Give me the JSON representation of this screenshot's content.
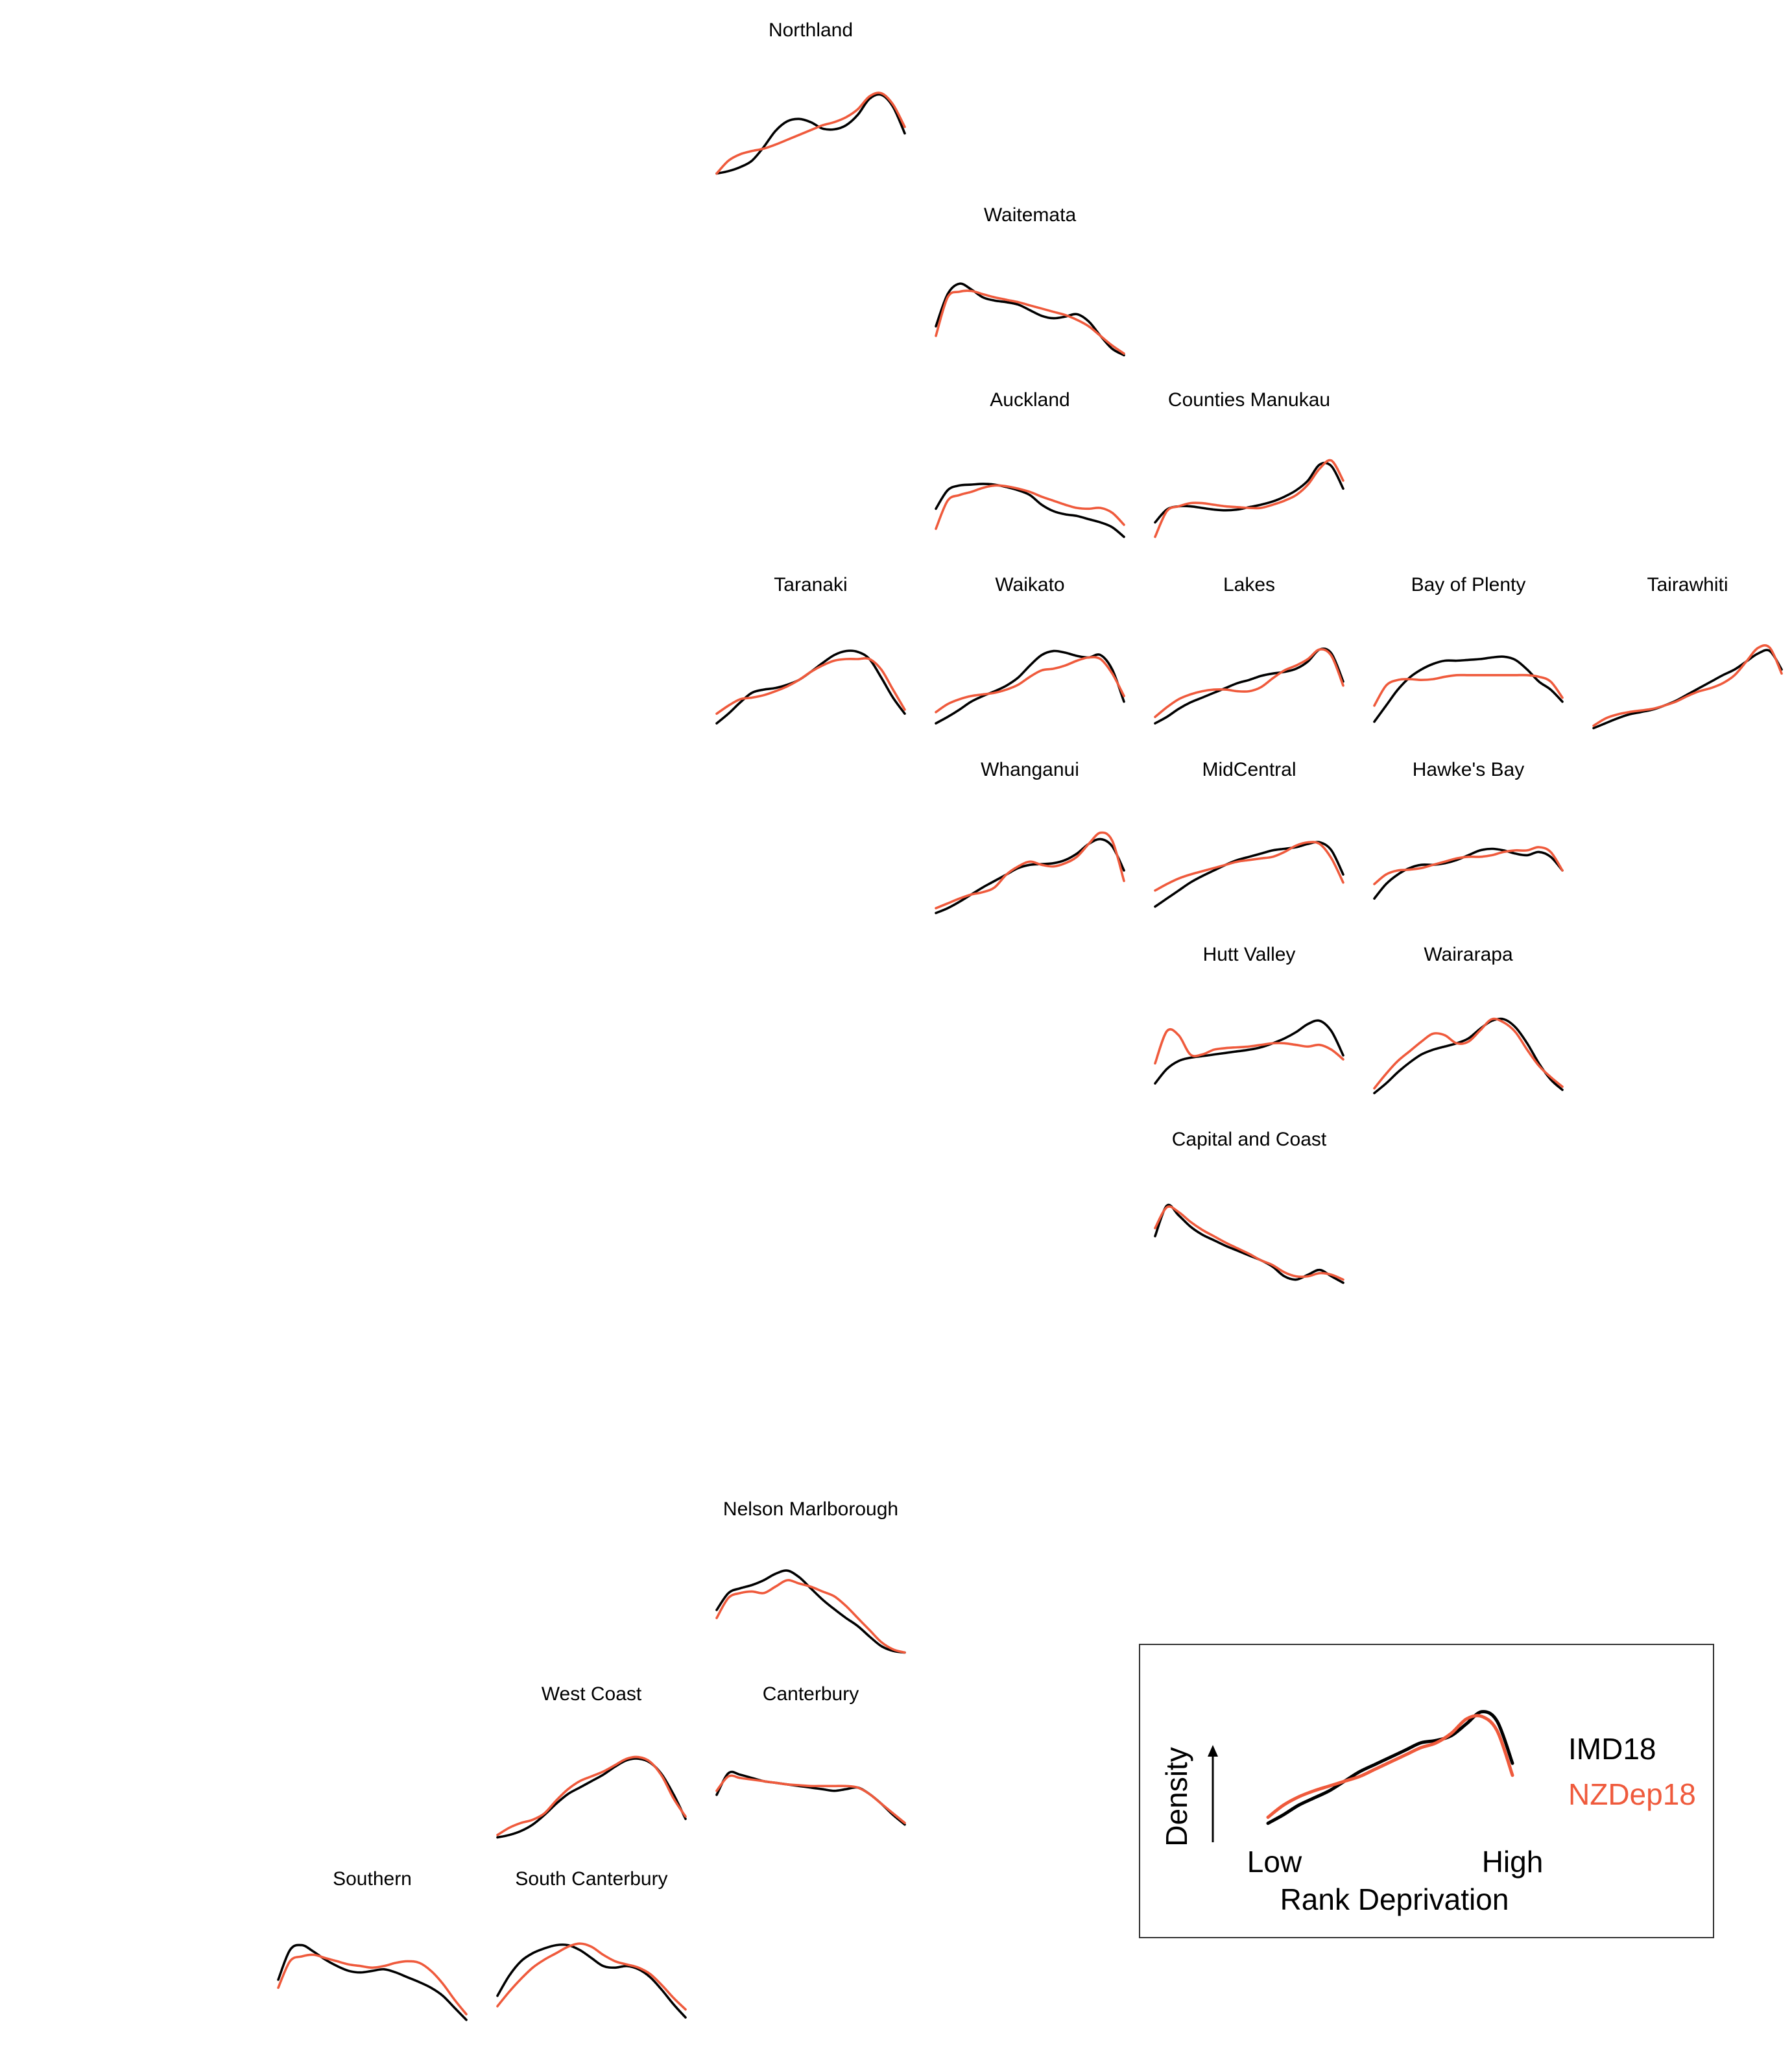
{
  "colors": {
    "imd": "#000000",
    "nzdep": "#ef5a3c",
    "background": "#ffffff",
    "legend_border": "#333333"
  },
  "chart_data": {
    "type": "line",
    "xlabel": "Rank Deprivation",
    "ylabel": "Density",
    "x_low_label": "Low",
    "x_high_label": "High",
    "legend": {
      "placement": "bottom-right",
      "example_series": "IMD18 and NZDep18 density curves"
    },
    "series_names": [
      "IMD18",
      "NZDep18"
    ],
    "panels": [
      {
        "title": "Northland",
        "imd": [
          0.02,
          0.05,
          0.1,
          0.18,
          0.35,
          0.55,
          0.67,
          0.7,
          0.66,
          0.58,
          0.57,
          0.62,
          0.75,
          0.95,
          1.0,
          0.85,
          0.52
        ],
        "nzdep": [
          0.02,
          0.18,
          0.26,
          0.3,
          0.33,
          0.38,
          0.44,
          0.5,
          0.56,
          0.62,
          0.66,
          0.72,
          0.82,
          0.98,
          1.02,
          0.88,
          0.6
        ]
      },
      {
        "title": "Waitemata",
        "imd": [
          0.42,
          0.82,
          0.95,
          0.88,
          0.78,
          0.74,
          0.72,
          0.69,
          0.62,
          0.55,
          0.52,
          0.54,
          0.57,
          0.48,
          0.3,
          0.14,
          0.06
        ],
        "nzdep": [
          0.3,
          0.78,
          0.85,
          0.86,
          0.82,
          0.78,
          0.75,
          0.72,
          0.68,
          0.64,
          0.6,
          0.56,
          0.5,
          0.42,
          0.3,
          0.18,
          0.08
        ]
      },
      {
        "title": "Auckland",
        "imd": [
          0.45,
          0.68,
          0.74,
          0.75,
          0.76,
          0.75,
          0.72,
          0.68,
          0.62,
          0.5,
          0.42,
          0.38,
          0.36,
          0.32,
          0.28,
          0.22,
          0.1
        ],
        "nzdep": [
          0.2,
          0.55,
          0.62,
          0.66,
          0.71,
          0.74,
          0.73,
          0.7,
          0.66,
          0.6,
          0.55,
          0.5,
          0.46,
          0.45,
          0.46,
          0.4,
          0.25
        ]
      },
      {
        "title": "Counties Manukau",
        "imd": [
          0.28,
          0.44,
          0.48,
          0.48,
          0.46,
          0.44,
          0.43,
          0.44,
          0.47,
          0.5,
          0.54,
          0.6,
          0.68,
          0.8,
          1.0,
          0.98,
          0.7
        ],
        "nzdep": [
          0.1,
          0.42,
          0.48,
          0.52,
          0.52,
          0.5,
          0.48,
          0.47,
          0.46,
          0.46,
          0.5,
          0.55,
          0.62,
          0.75,
          0.95,
          1.05,
          0.8
        ]
      },
      {
        "title": "Taranaki",
        "imd": [
          0.08,
          0.2,
          0.34,
          0.46,
          0.5,
          0.52,
          0.56,
          0.62,
          0.72,
          0.83,
          0.93,
          0.98,
          0.97,
          0.88,
          0.65,
          0.4,
          0.2
        ],
        "nzdep": [
          0.2,
          0.3,
          0.38,
          0.4,
          0.43,
          0.48,
          0.54,
          0.62,
          0.72,
          0.8,
          0.86,
          0.88,
          0.88,
          0.88,
          0.75,
          0.5,
          0.25
        ]
      },
      {
        "title": "Waikato",
        "imd": [
          0.08,
          0.16,
          0.25,
          0.35,
          0.42,
          0.48,
          0.55,
          0.65,
          0.8,
          0.93,
          0.98,
          0.96,
          0.92,
          0.9,
          0.93,
          0.75,
          0.35
        ],
        "nzdep": [
          0.22,
          0.32,
          0.38,
          0.42,
          0.44,
          0.46,
          0.5,
          0.56,
          0.66,
          0.74,
          0.76,
          0.8,
          0.86,
          0.9,
          0.88,
          0.7,
          0.42
        ]
      },
      {
        "title": "Lakes",
        "imd": [
          0.08,
          0.16,
          0.26,
          0.34,
          0.4,
          0.46,
          0.52,
          0.58,
          0.62,
          0.67,
          0.7,
          0.72,
          0.76,
          0.85,
          1.0,
          0.95,
          0.6
        ],
        "nzdep": [
          0.16,
          0.28,
          0.38,
          0.44,
          0.48,
          0.5,
          0.5,
          0.48,
          0.48,
          0.53,
          0.64,
          0.74,
          0.8,
          0.88,
          1.0,
          0.92,
          0.55
        ]
      },
      {
        "title": "Bay of Plenty",
        "imd": [
          0.1,
          0.3,
          0.5,
          0.65,
          0.75,
          0.82,
          0.86,
          0.86,
          0.87,
          0.88,
          0.9,
          0.91,
          0.87,
          0.75,
          0.6,
          0.5,
          0.35
        ],
        "nzdep": [
          0.3,
          0.55,
          0.62,
          0.63,
          0.62,
          0.63,
          0.66,
          0.68,
          0.68,
          0.68,
          0.68,
          0.68,
          0.68,
          0.68,
          0.66,
          0.6,
          0.4
        ]
      },
      {
        "title": "Tairawhiti",
        "imd": [
          0.02,
          0.08,
          0.14,
          0.19,
          0.22,
          0.25,
          0.3,
          0.36,
          0.44,
          0.52,
          0.6,
          0.68,
          0.75,
          0.85,
          0.95,
          0.98,
          0.75
        ],
        "nzdep": [
          0.05,
          0.14,
          0.19,
          0.22,
          0.24,
          0.26,
          0.3,
          0.35,
          0.42,
          0.48,
          0.52,
          0.58,
          0.68,
          0.85,
          1.02,
          1.02,
          0.7
        ]
      },
      {
        "title": "Whanganui",
        "imd": [
          0.02,
          0.08,
          0.16,
          0.25,
          0.34,
          0.42,
          0.5,
          0.58,
          0.62,
          0.63,
          0.64,
          0.68,
          0.76,
          0.88,
          0.94,
          0.85,
          0.55
        ],
        "nzdep": [
          0.08,
          0.14,
          0.2,
          0.25,
          0.28,
          0.34,
          0.5,
          0.6,
          0.66,
          0.62,
          0.6,
          0.64,
          0.72,
          0.88,
          1.02,
          0.92,
          0.42
        ]
      },
      {
        "title": "MidCentral",
        "imd": [
          0.1,
          0.2,
          0.3,
          0.4,
          0.48,
          0.55,
          0.62,
          0.68,
          0.72,
          0.76,
          0.8,
          0.82,
          0.84,
          0.88,
          0.9,
          0.8,
          0.5
        ],
        "nzdep": [
          0.3,
          0.38,
          0.45,
          0.5,
          0.54,
          0.58,
          0.62,
          0.66,
          0.68,
          0.7,
          0.72,
          0.78,
          0.86,
          0.9,
          0.88,
          0.7,
          0.4
        ]
      },
      {
        "title": "Hawke's Bay",
        "imd": [
          0.2,
          0.38,
          0.5,
          0.58,
          0.62,
          0.62,
          0.64,
          0.68,
          0.74,
          0.8,
          0.82,
          0.8,
          0.76,
          0.74,
          0.78,
          0.72,
          0.55
        ],
        "nzdep": [
          0.38,
          0.5,
          0.55,
          0.56,
          0.58,
          0.62,
          0.66,
          0.7,
          0.72,
          0.72,
          0.74,
          0.78,
          0.8,
          0.8,
          0.84,
          0.78,
          0.55
        ]
      },
      {
        "title": "Hutt Valley",
        "imd": [
          0.2,
          0.38,
          0.48,
          0.52,
          0.54,
          0.56,
          0.58,
          0.6,
          0.62,
          0.65,
          0.7,
          0.76,
          0.84,
          0.94,
          0.98,
          0.85,
          0.55
        ],
        "nzdep": [
          0.45,
          0.85,
          0.8,
          0.56,
          0.56,
          0.62,
          0.64,
          0.65,
          0.66,
          0.68,
          0.7,
          0.7,
          0.68,
          0.66,
          0.68,
          0.62,
          0.5
        ]
      },
      {
        "title": "Wairarapa",
        "imd": [
          0.08,
          0.2,
          0.34,
          0.46,
          0.56,
          0.62,
          0.66,
          0.7,
          0.76,
          0.88,
          0.98,
          1.0,
          0.9,
          0.7,
          0.45,
          0.25,
          0.12
        ],
        "nzdep": [
          0.14,
          0.32,
          0.48,
          0.6,
          0.72,
          0.82,
          0.8,
          0.7,
          0.72,
          0.86,
          1.0,
          0.96,
          0.84,
          0.62,
          0.42,
          0.28,
          0.16
        ]
      },
      {
        "title": "Capital and Coast",
        "imd": [
          0.6,
          0.98,
          0.86,
          0.72,
          0.62,
          0.55,
          0.48,
          0.42,
          0.36,
          0.3,
          0.22,
          0.1,
          0.06,
          0.12,
          0.18,
          0.1,
          0.02
        ],
        "nzdep": [
          0.7,
          0.96,
          0.9,
          0.78,
          0.68,
          0.6,
          0.52,
          0.45,
          0.38,
          0.3,
          0.24,
          0.15,
          0.1,
          0.1,
          0.14,
          0.12,
          0.06
        ]
      },
      {
        "title": "Nelson Marlborough",
        "imd": [
          0.55,
          0.76,
          0.82,
          0.86,
          0.92,
          1.0,
          1.04,
          0.96,
          0.82,
          0.68,
          0.56,
          0.45,
          0.35,
          0.22,
          0.1,
          0.04,
          0.02
        ],
        "nzdep": [
          0.45,
          0.7,
          0.76,
          0.78,
          0.76,
          0.84,
          0.92,
          0.88,
          0.84,
          0.78,
          0.72,
          0.6,
          0.45,
          0.3,
          0.15,
          0.06,
          0.02
        ]
      },
      {
        "title": "West Coast",
        "imd": [
          0.02,
          0.05,
          0.1,
          0.18,
          0.3,
          0.44,
          0.56,
          0.64,
          0.72,
          0.8,
          0.9,
          0.98,
          1.0,
          0.95,
          0.8,
          0.55,
          0.25
        ],
        "nzdep": [
          0.05,
          0.14,
          0.2,
          0.24,
          0.32,
          0.48,
          0.62,
          0.72,
          0.78,
          0.84,
          0.92,
          1.0,
          1.02,
          0.96,
          0.78,
          0.5,
          0.28
        ]
      },
      {
        "title": "Canterbury",
        "imd": [
          0.55,
          0.82,
          0.8,
          0.76,
          0.72,
          0.7,
          0.68,
          0.66,
          0.64,
          0.62,
          0.6,
          0.62,
          0.64,
          0.56,
          0.44,
          0.3,
          0.18
        ],
        "nzdep": [
          0.6,
          0.78,
          0.76,
          0.74,
          0.72,
          0.7,
          0.68,
          0.67,
          0.66,
          0.66,
          0.66,
          0.66,
          0.64,
          0.56,
          0.44,
          0.32,
          0.2
        ]
      },
      {
        "title": "Southern",
        "imd": [
          0.55,
          0.92,
          0.98,
          0.9,
          0.8,
          0.72,
          0.66,
          0.64,
          0.66,
          0.68,
          0.64,
          0.58,
          0.52,
          0.45,
          0.35,
          0.2,
          0.05
        ],
        "nzdep": [
          0.45,
          0.78,
          0.84,
          0.86,
          0.82,
          0.78,
          0.74,
          0.72,
          0.7,
          0.72,
          0.76,
          0.78,
          0.76,
          0.66,
          0.5,
          0.3,
          0.12
        ]
      },
      {
        "title": "South Canterbury",
        "imd": [
          0.35,
          0.6,
          0.78,
          0.88,
          0.94,
          0.98,
          0.98,
          0.92,
          0.82,
          0.72,
          0.7,
          0.72,
          0.68,
          0.58,
          0.42,
          0.24,
          0.08
        ],
        "nzdep": [
          0.22,
          0.4,
          0.56,
          0.7,
          0.8,
          0.88,
          0.96,
          1.0,
          0.96,
          0.86,
          0.78,
          0.74,
          0.7,
          0.62,
          0.48,
          0.32,
          0.18
        ]
      }
    ],
    "legend_example": {
      "imd": [
        0.05,
        0.12,
        0.2,
        0.26,
        0.32,
        0.4,
        0.48,
        0.54,
        0.6,
        0.66,
        0.72,
        0.74,
        0.78,
        0.88,
        0.98,
        0.9,
        0.55
      ],
      "nzdep": [
        0.1,
        0.2,
        0.27,
        0.32,
        0.36,
        0.4,
        0.44,
        0.5,
        0.56,
        0.62,
        0.68,
        0.72,
        0.8,
        0.92,
        0.94,
        0.82,
        0.45
      ]
    }
  }
}
